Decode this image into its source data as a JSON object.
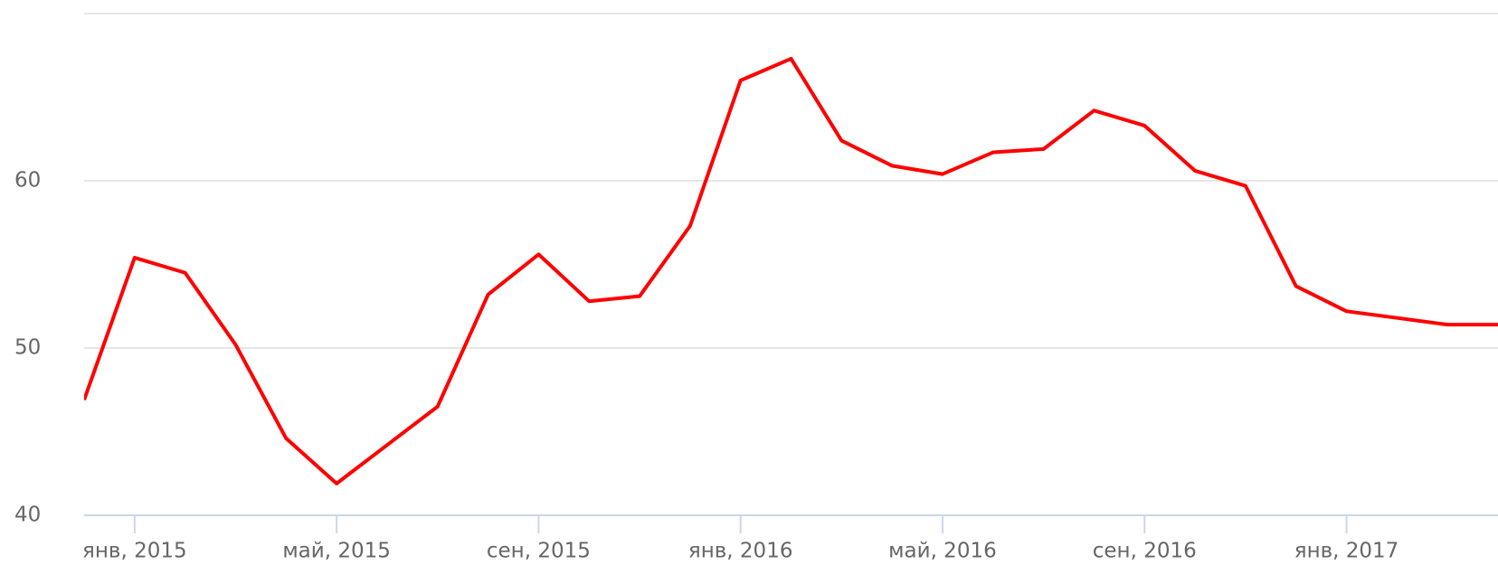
{
  "chart_data": {
    "type": "line",
    "x": [
      "2014-12",
      "2015-01",
      "2015-02",
      "2015-03",
      "2015-04",
      "2015-05",
      "2015-06",
      "2015-07",
      "2015-08",
      "2015-09",
      "2015-10",
      "2015-11",
      "2015-12",
      "2016-01",
      "2016-02",
      "2016-03",
      "2016-04",
      "2016-05",
      "2016-06",
      "2016-07",
      "2016-08",
      "2016-09",
      "2016-10",
      "2016-11",
      "2016-12",
      "2017-01",
      "2017-02",
      "2017-03",
      "2017-04"
    ],
    "series": [
      {
        "color": "#ff0000",
        "values": [
          46.9,
          55.4,
          54.5,
          50.2,
          44.6,
          41.9,
          44.2,
          46.5,
          53.2,
          55.6,
          52.8,
          53.1,
          57.3,
          66.0,
          67.3,
          62.4,
          60.9,
          60.4,
          61.7,
          61.9,
          64.2,
          63.3,
          60.6,
          59.7,
          53.7,
          52.2,
          51.8,
          51.4,
          51.4
        ]
      }
    ],
    "xlim": [
      "2014-12",
      "2017-04"
    ],
    "xticks": [
      {
        "value": "2015-01",
        "label": "янв, 2015"
      },
      {
        "value": "2015-05",
        "label": "май, 2015"
      },
      {
        "value": "2015-09",
        "label": "сен, 2015"
      },
      {
        "value": "2016-01",
        "label": "янв, 2016"
      },
      {
        "value": "2016-05",
        "label": "май, 2016"
      },
      {
        "value": "2016-09",
        "label": "сен, 2016"
      },
      {
        "value": "2017-01",
        "label": "янв, 2017"
      }
    ],
    "ylim": [
      40,
      70
    ],
    "yticks": [
      40,
      50,
      60
    ],
    "grid": true
  }
}
